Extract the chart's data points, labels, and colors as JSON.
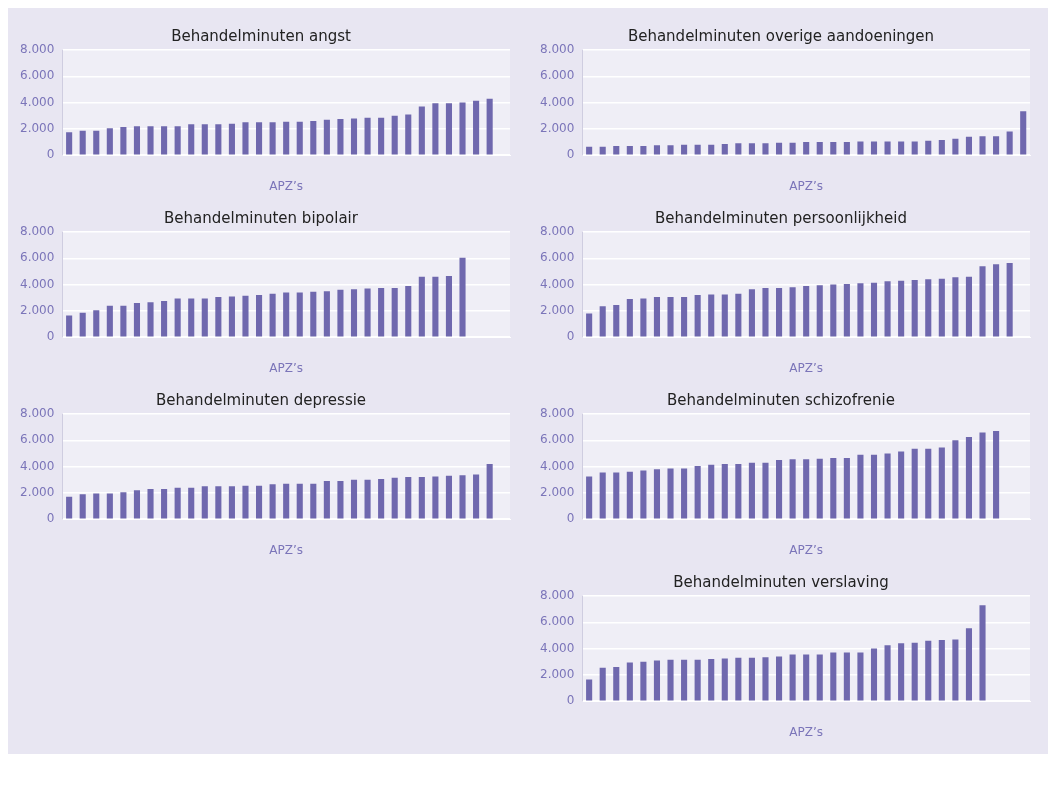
{
  "chart_data": [
    {
      "type": "bar",
      "title": "Behandelminuten angst",
      "xlabel": "APZ’s",
      "categories": [
        null,
        null,
        null,
        null,
        null,
        null,
        null,
        null,
        null,
        null,
        null,
        null,
        null,
        null,
        null,
        null,
        null,
        null,
        null,
        null,
        null,
        null,
        null,
        null,
        null,
        null,
        null,
        null,
        null,
        null,
        null,
        null,
        null
      ],
      "color": "#6f68ae",
      "values": [
        1750,
        1850,
        1850,
        2050,
        2150,
        2200,
        2200,
        2200,
        2200,
        2350,
        2350,
        2350,
        2400,
        2500,
        2500,
        2500,
        2550,
        2550,
        2600,
        2700,
        2750,
        2800,
        2850,
        2850,
        3000,
        3100,
        3700,
        3950,
        3950,
        4000,
        4150,
        4300,
        null
      ],
      "ylim": [
        0,
        8000
      ],
      "yticks": [
        {
          "value": 0,
          "label": "0"
        },
        {
          "value": 2000,
          "label": "2.000"
        },
        {
          "value": 4000,
          "label": "4.000"
        },
        {
          "value": 6000,
          "label": "6.000"
        },
        {
          "value": 8000,
          "label": "8.000"
        }
      ],
      "grid": "y",
      "legend": false
    },
    {
      "type": "bar",
      "title": "Behandelminuten overige aandoeningen",
      "xlabel": "APZ’s",
      "categories": [
        null,
        null,
        null,
        null,
        null,
        null,
        null,
        null,
        null,
        null,
        null,
        null,
        null,
        null,
        null,
        null,
        null,
        null,
        null,
        null,
        null,
        null,
        null,
        null,
        null,
        null,
        null,
        null,
        null,
        null,
        null,
        null,
        null
      ],
      "color": "#6f68ae",
      "values": [
        650,
        650,
        700,
        700,
        700,
        750,
        750,
        800,
        800,
        800,
        850,
        900,
        900,
        900,
        950,
        950,
        1000,
        1000,
        1000,
        1000,
        1050,
        1050,
        1050,
        1050,
        1050,
        1100,
        1150,
        1250,
        1400,
        1450,
        1450,
        1800,
        3350
      ],
      "ylim": [
        0,
        8000
      ],
      "yticks": [
        {
          "value": 0,
          "label": "0"
        },
        {
          "value": 2000,
          "label": "2.000"
        },
        {
          "value": 4000,
          "label": "4.000"
        },
        {
          "value": 6000,
          "label": "6.000"
        },
        {
          "value": 8000,
          "label": "8.000"
        }
      ],
      "grid": "y",
      "legend": false
    },
    {
      "type": "bar",
      "title": "Behandelminuten bipolair",
      "xlabel": "APZ’s",
      "categories": [
        null,
        null,
        null,
        null,
        null,
        null,
        null,
        null,
        null,
        null,
        null,
        null,
        null,
        null,
        null,
        null,
        null,
        null,
        null,
        null,
        null,
        null,
        null,
        null,
        null,
        null,
        null,
        null,
        null,
        null,
        null,
        null,
        null
      ],
      "color": "#6f68ae",
      "values": [
        1650,
        1850,
        2050,
        2400,
        2400,
        2600,
        2650,
        2750,
        2950,
        2950,
        2950,
        3050,
        3100,
        3150,
        3200,
        3300,
        3400,
        3400,
        3450,
        3500,
        3600,
        3650,
        3700,
        3750,
        3750,
        3900,
        4600,
        4600,
        4650,
        6050,
        null,
        null,
        null
      ],
      "ylim": [
        0,
        8000
      ],
      "yticks": [
        {
          "value": 0,
          "label": "0"
        },
        {
          "value": 2000,
          "label": "2.000"
        },
        {
          "value": 4000,
          "label": "4.000"
        },
        {
          "value": 6000,
          "label": "6.000"
        },
        {
          "value": 8000,
          "label": "8.000"
        }
      ],
      "grid": "y",
      "legend": false
    },
    {
      "type": "bar",
      "title": "Behandelminuten persoonlijkheid",
      "xlabel": "APZ’s",
      "categories": [
        null,
        null,
        null,
        null,
        null,
        null,
        null,
        null,
        null,
        null,
        null,
        null,
        null,
        null,
        null,
        null,
        null,
        null,
        null,
        null,
        null,
        null,
        null,
        null,
        null,
        null,
        null,
        null,
        null,
        null,
        null,
        null,
        null
      ],
      "color": "#6f68ae",
      "values": [
        1800,
        2350,
        2450,
        2900,
        2950,
        3050,
        3050,
        3050,
        3200,
        3250,
        3250,
        3300,
        3650,
        3750,
        3750,
        3800,
        3900,
        3950,
        4000,
        4050,
        4100,
        4150,
        4250,
        4300,
        4350,
        4400,
        4450,
        4550,
        4600,
        5400,
        5550,
        5650,
        null
      ],
      "ylim": [
        0,
        8000
      ],
      "yticks": [
        {
          "value": 0,
          "label": "0"
        },
        {
          "value": 2000,
          "label": "2.000"
        },
        {
          "value": 4000,
          "label": "4.000"
        },
        {
          "value": 6000,
          "label": "6.000"
        },
        {
          "value": 8000,
          "label": "8.000"
        }
      ],
      "grid": "y",
      "legend": false
    },
    {
      "type": "bar",
      "title": "Behandelminuten depressie",
      "xlabel": "APZ’s",
      "categories": [
        null,
        null,
        null,
        null,
        null,
        null,
        null,
        null,
        null,
        null,
        null,
        null,
        null,
        null,
        null,
        null,
        null,
        null,
        null,
        null,
        null,
        null,
        null,
        null,
        null,
        null,
        null,
        null,
        null,
        null,
        null,
        null,
        null
      ],
      "color": "#6f68ae",
      "values": [
        1700,
        1900,
        1950,
        1950,
        2050,
        2200,
        2300,
        2300,
        2400,
        2400,
        2500,
        2500,
        2500,
        2550,
        2550,
        2650,
        2700,
        2700,
        2700,
        2900,
        2900,
        3000,
        3000,
        3050,
        3150,
        3200,
        3200,
        3250,
        3300,
        3350,
        3400,
        4200,
        null
      ],
      "ylim": [
        0,
        8000
      ],
      "yticks": [
        {
          "value": 0,
          "label": "0"
        },
        {
          "value": 2000,
          "label": "2.000"
        },
        {
          "value": 4000,
          "label": "4.000"
        },
        {
          "value": 6000,
          "label": "6.000"
        },
        {
          "value": 8000,
          "label": "8.000"
        }
      ],
      "grid": "y",
      "legend": false
    },
    {
      "type": "bar",
      "title": "Behandelminuten schizofrenie",
      "xlabel": "APZ’s",
      "categories": [
        null,
        null,
        null,
        null,
        null,
        null,
        null,
        null,
        null,
        null,
        null,
        null,
        null,
        null,
        null,
        null,
        null,
        null,
        null,
        null,
        null,
        null,
        null,
        null,
        null,
        null,
        null,
        null,
        null,
        null,
        null,
        null,
        null
      ],
      "color": "#6f68ae",
      "values": [
        3250,
        3550,
        3550,
        3600,
        3700,
        3800,
        3850,
        3850,
        4050,
        4150,
        4200,
        4200,
        4300,
        4300,
        4500,
        4550,
        4550,
        4600,
        4650,
        4650,
        4900,
        4900,
        5000,
        5150,
        5350,
        5350,
        5450,
        6000,
        6250,
        6600,
        6700,
        null,
        null
      ],
      "ylim": [
        0,
        8000
      ],
      "yticks": [
        {
          "value": 0,
          "label": "0"
        },
        {
          "value": 2000,
          "label": "2.000"
        },
        {
          "value": 4000,
          "label": "4.000"
        },
        {
          "value": 6000,
          "label": "6.000"
        },
        {
          "value": 8000,
          "label": "8.000"
        }
      ],
      "grid": "y",
      "legend": false
    },
    {
      "type": "bar",
      "title": "Behandelminuten verslaving",
      "xlabel": "APZ’s",
      "categories": [
        null,
        null,
        null,
        null,
        null,
        null,
        null,
        null,
        null,
        null,
        null,
        null,
        null,
        null,
        null,
        null,
        null,
        null,
        null,
        null,
        null,
        null,
        null,
        null,
        null,
        null,
        null,
        null,
        null,
        null,
        null,
        null,
        null
      ],
      "color": "#6f68ae",
      "values": [
        1650,
        2550,
        2600,
        2950,
        3000,
        3100,
        3150,
        3150,
        3150,
        3200,
        3250,
        3300,
        3300,
        3350,
        3400,
        3550,
        3550,
        3550,
        3700,
        3700,
        3700,
        4000,
        4250,
        4400,
        4450,
        4600,
        4650,
        4700,
        5550,
        7300,
        null,
        null,
        null
      ],
      "ylim": [
        0,
        8000
      ],
      "yticks": [
        {
          "value": 0,
          "label": "0"
        },
        {
          "value": 2000,
          "label": "2.000"
        },
        {
          "value": 4000,
          "label": "4.000"
        },
        {
          "value": 6000,
          "label": "6.000"
        },
        {
          "value": 8000,
          "label": "8.000"
        }
      ],
      "grid": "y",
      "legend": false
    }
  ]
}
